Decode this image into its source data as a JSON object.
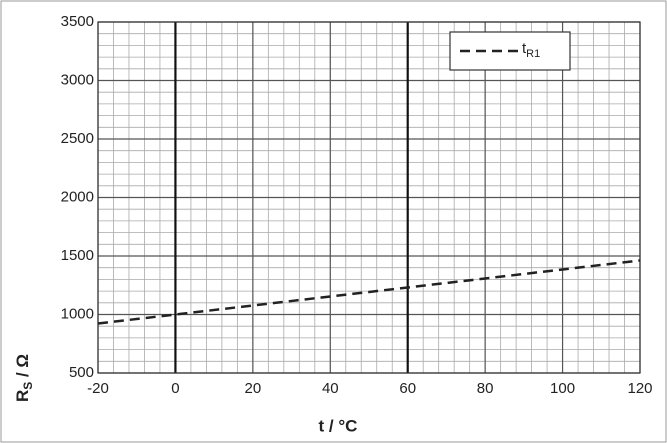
{
  "chart_data": {
    "type": "line",
    "xlabel": "t / °C",
    "ylabel": [
      "R",
      "S",
      " / Ω"
    ],
    "x": [
      -20,
      0,
      20,
      40,
      60,
      80,
      100,
      120
    ],
    "series": [
      {
        "name": "t",
        "name_subscript": "R1",
        "color": "#222222",
        "dashed": true,
        "values": [
          923,
          1000,
          1077,
          1154,
          1231,
          1308,
          1385,
          1462
        ]
      }
    ],
    "xlim": [
      -20,
      120
    ],
    "xticks": [
      -20,
      0,
      20,
      40,
      60,
      80,
      100,
      120
    ],
    "ylim": [
      500,
      3500
    ],
    "yticks": [
      500,
      1000,
      1500,
      2000,
      2500,
      3000,
      3500
    ],
    "grid": true,
    "xminor": 4,
    "yminor": 100,
    "xbold": [
      0,
      60
    ],
    "legend": "upper right"
  }
}
